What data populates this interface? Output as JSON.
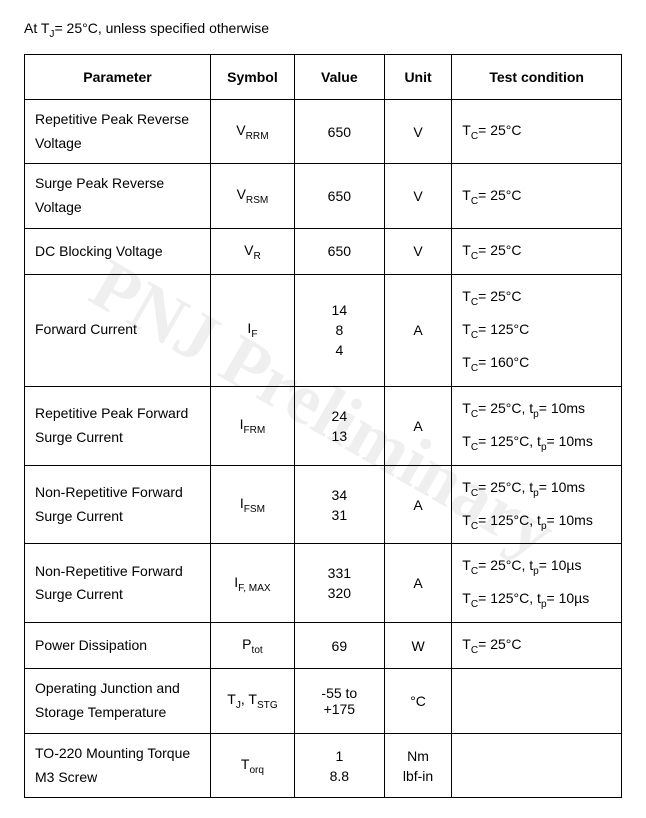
{
  "caption_prefix": "At T",
  "caption_sub": "J",
  "caption_suffix": "= 25°C, unless specified otherwise",
  "watermark_text": "PNJ Preliminary",
  "columns": {
    "param_width": 182,
    "symbol_width": 82,
    "value_width": 88,
    "unit_width": 66,
    "cond_width": 166
  },
  "headers": {
    "parameter": "Parameter",
    "symbol": "Symbol",
    "value": "Value",
    "unit": "Unit",
    "condition": "Test condition"
  },
  "rows": [
    {
      "param": "Repetitive Peak Reverse Voltage",
      "symbol_main": "V",
      "symbol_sub": "RRM",
      "values": [
        "650"
      ],
      "unit": [
        "V"
      ],
      "cond": [
        {
          "pre": "T",
          "sub": "C",
          "post": "= 25°C"
        }
      ]
    },
    {
      "param": "Surge Peak Reverse Voltage",
      "symbol_main": "V",
      "symbol_sub": "RSM",
      "values": [
        "650"
      ],
      "unit": [
        "V"
      ],
      "cond": [
        {
          "pre": "T",
          "sub": "C",
          "post": "= 25°C"
        }
      ]
    },
    {
      "param": "DC Blocking Voltage",
      "symbol_main": "V",
      "symbol_sub": "R",
      "values": [
        "650"
      ],
      "unit": [
        "V"
      ],
      "cond": [
        {
          "pre": "T",
          "sub": "C",
          "post": "= 25°C"
        }
      ]
    },
    {
      "param": "Forward Current",
      "symbol_main": "I",
      "symbol_sub": "F",
      "values": [
        "14",
        "8",
        "4"
      ],
      "unit": [
        "A"
      ],
      "cond": [
        {
          "pre": "T",
          "sub": "C",
          "post": "= 25°C"
        },
        {
          "pre": "T",
          "sub": "C",
          "post": "= 125°C"
        },
        {
          "pre": "T",
          "sub": "C",
          "post": "= 160°C"
        }
      ]
    },
    {
      "param": "Repetitive Peak Forward Surge Current",
      "symbol_main": "I",
      "symbol_sub": "FRM",
      "values": [
        "24",
        "13"
      ],
      "unit": [
        "A"
      ],
      "cond": [
        {
          "pre": "T",
          "sub": "C",
          "post": "= 25°C, t",
          "sub2": "p",
          "post2": "= 10ms"
        },
        {
          "pre": "T",
          "sub": "C",
          "post": "= 125°C, t",
          "sub2": "p",
          "post2": "= 10ms"
        }
      ]
    },
    {
      "param": "Non-Repetitive Forward Surge Current",
      "symbol_main": "I",
      "symbol_sub": "FSM",
      "values": [
        "34",
        "31"
      ],
      "unit": [
        "A"
      ],
      "cond": [
        {
          "pre": "T",
          "sub": "C",
          "post": "= 25°C, t",
          "sub2": "p",
          "post2": "= 10ms"
        },
        {
          "pre": "T",
          "sub": "C",
          "post": "= 125°C, t",
          "sub2": "p",
          "post2": "= 10ms"
        }
      ]
    },
    {
      "param": "Non-Repetitive Forward Surge Current",
      "symbol_main": "I",
      "symbol_sub": "F, MAX",
      "values": [
        "331",
        "320"
      ],
      "unit": [
        "A"
      ],
      "cond": [
        {
          "pre": "T",
          "sub": "C",
          "post": "= 25°C, t",
          "sub2": "p",
          "post2": "= 10µs"
        },
        {
          "pre": "T",
          "sub": "C",
          "post": "= 125°C, t",
          "sub2": "p",
          "post2": "= 10µs"
        }
      ]
    },
    {
      "param": "Power Dissipation",
      "symbol_main": "P",
      "symbol_sub": "tot",
      "values": [
        "69"
      ],
      "unit": [
        "W"
      ],
      "cond": [
        {
          "pre": "T",
          "sub": "C",
          "post": "= 25°C"
        }
      ]
    },
    {
      "param": "Operating Junction and Storage Temperature",
      "symbol_html": "T<sub>J</sub>, T<sub>STG</sub>",
      "values": [
        "-55 to +175"
      ],
      "unit": [
        "°C"
      ],
      "cond": []
    },
    {
      "param": "TO-220 Mounting Torque M3 Screw",
      "symbol_main": "T",
      "symbol_sub": "orq",
      "values": [
        "1",
        "8.8"
      ],
      "unit": [
        "Nm",
        "lbf-in"
      ],
      "cond": []
    }
  ],
  "style": {
    "font_family": "Segoe UI, Tahoma, Arial, sans-serif",
    "font_size_pt": 10.5,
    "header_font_weight": 700,
    "border_color": "#000000",
    "background_color": "#ffffff",
    "text_color": "#000000",
    "watermark_opacity": 0.06,
    "watermark_rotation_deg": 30
  }
}
